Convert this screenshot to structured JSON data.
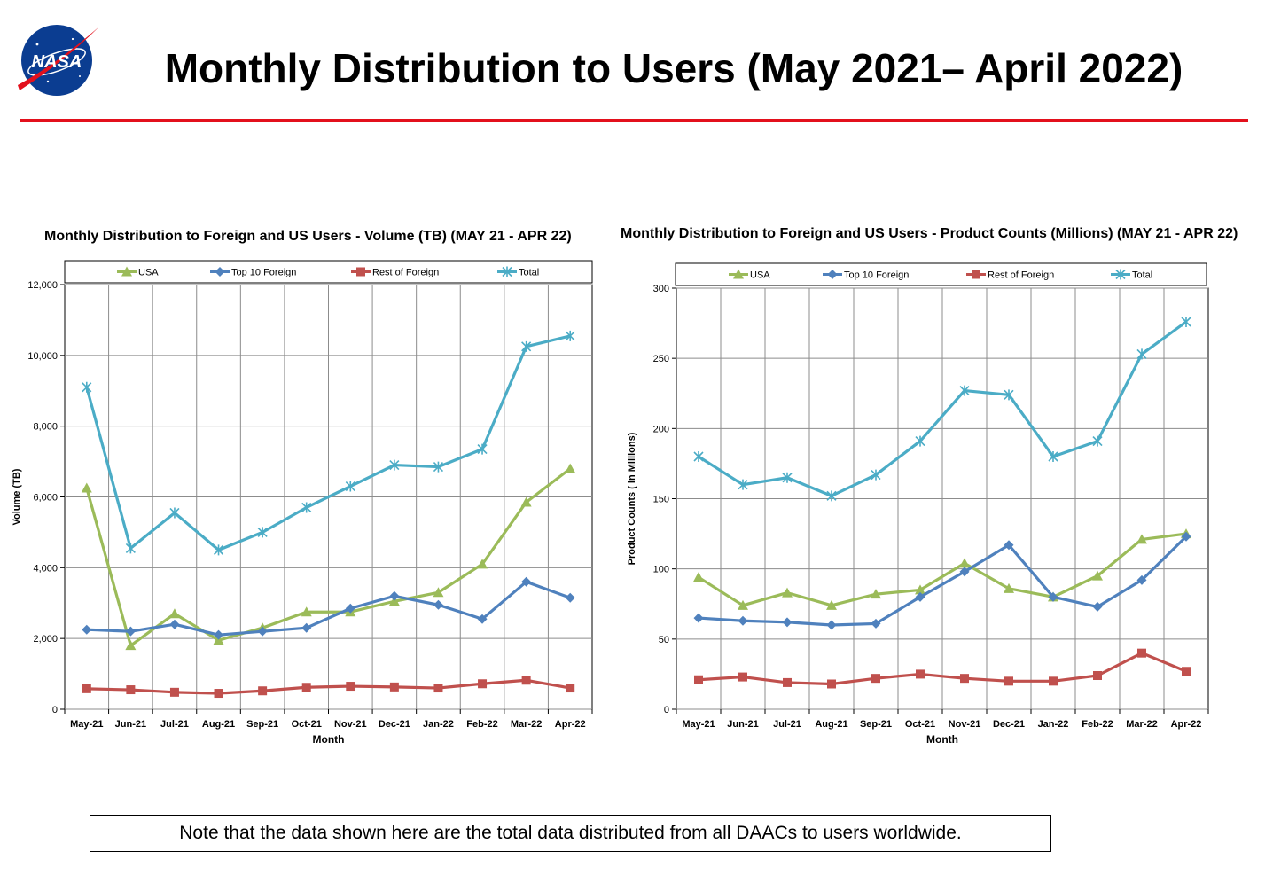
{
  "header": {
    "title": "Monthly Distribution to Users (May 2021– April 2022)",
    "logo_text": "NASA"
  },
  "colors": {
    "rule": "#e3101c",
    "usa": "#9bbb59",
    "top10": "#4f81bd",
    "rest": "#c0504d",
    "total": "#4bacc6"
  },
  "note": "Note that the data shown here are the total data distributed from all DAACs to users worldwide.",
  "chart_data": [
    {
      "type": "line",
      "title": "Monthly Distribution to Foreign and US Users - Volume  (TB) (MAY 21 - APR 22)",
      "xlabel": "Month",
      "ylabel": "Volume (TB)",
      "ylim": [
        0,
        12000
      ],
      "yticks": [
        0,
        2000,
        4000,
        6000,
        8000,
        10000,
        12000
      ],
      "ytick_labels": [
        "0",
        "2,000",
        "4,000",
        "6,000",
        "8,000",
        "10,000",
        "12,000"
      ],
      "grid": true,
      "legend": "top",
      "categories": [
        "May-21",
        "Jun-21",
        "Jul-21",
        "Aug-21",
        "Sep-21",
        "Oct-21",
        "Nov-21",
        "Dec-21",
        "Jan-22",
        "Feb-22",
        "Mar-22",
        "Apr-22"
      ],
      "series": [
        {
          "name": "USA",
          "marker": "triangle",
          "color": "#9bbb59",
          "values": [
            6250,
            1800,
            2700,
            1950,
            2300,
            2750,
            2750,
            3050,
            3300,
            4100,
            5850,
            6800
          ]
        },
        {
          "name": "Top 10 Foreign",
          "marker": "diamond",
          "color": "#4f81bd",
          "values": [
            2250,
            2200,
            2400,
            2100,
            2200,
            2300,
            2850,
            3200,
            2950,
            2550,
            3600,
            3150
          ]
        },
        {
          "name": "Rest of Foreign",
          "marker": "square",
          "color": "#c0504d",
          "values": [
            580,
            550,
            480,
            450,
            520,
            620,
            650,
            630,
            600,
            720,
            820,
            600
          ]
        },
        {
          "name": "Total",
          "marker": "star",
          "color": "#4bacc6",
          "values": [
            9100,
            4550,
            5550,
            4500,
            5000,
            5700,
            6300,
            6900,
            6850,
            7350,
            10250,
            10550
          ]
        }
      ]
    },
    {
      "type": "line",
      "title": "Monthly Distribution to Foreign and US Users - Product Counts (Millions) (MAY 21 - APR 22)",
      "xlabel": "Month",
      "ylabel": "Product Counts ( in Millions)",
      "ylim": [
        0,
        300
      ],
      "yticks": [
        0,
        50,
        100,
        150,
        200,
        250,
        300
      ],
      "ytick_labels": [
        "0",
        "50",
        "100",
        "150",
        "200",
        "250",
        "300"
      ],
      "grid": true,
      "legend": "top",
      "categories": [
        "May-21",
        "Jun-21",
        "Jul-21",
        "Aug-21",
        "Sep-21",
        "Oct-21",
        "Nov-21",
        "Dec-21",
        "Jan-22",
        "Feb-22",
        "Mar-22",
        "Apr-22"
      ],
      "series": [
        {
          "name": "USA",
          "marker": "triangle",
          "color": "#9bbb59",
          "values": [
            94,
            74,
            83,
            74,
            82,
            85,
            104,
            86,
            80,
            95,
            121,
            125
          ]
        },
        {
          "name": "Top 10 Foreign",
          "marker": "diamond",
          "color": "#4f81bd",
          "values": [
            65,
            63,
            62,
            60,
            61,
            80,
            98,
            117,
            80,
            73,
            92,
            123
          ]
        },
        {
          "name": "Rest of Foreign",
          "marker": "square",
          "color": "#c0504d",
          "values": [
            21,
            23,
            19,
            18,
            22,
            25,
            22,
            20,
            20,
            24,
            40,
            27
          ]
        },
        {
          "name": "Total",
          "marker": "star",
          "color": "#4bacc6",
          "values": [
            180,
            160,
            165,
            152,
            167,
            191,
            227,
            224,
            180,
            191,
            253,
            276
          ]
        }
      ]
    }
  ]
}
